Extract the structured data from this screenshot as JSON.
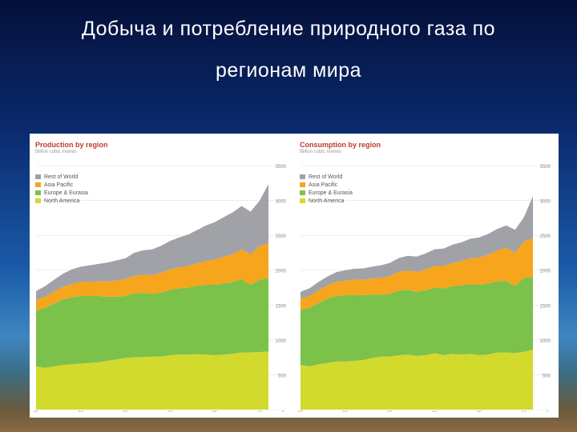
{
  "slide": {
    "title_line1": "Добыча и потребление природного газа по",
    "title_line2": "регионам мира"
  },
  "colors": {
    "rest_of_world": "#a0a2a7",
    "asia_pacific": "#f6a51c",
    "europe_eurasia": "#7cc14a",
    "north_america": "#d2da2e",
    "title_red": "#c0392b"
  },
  "chart_data": [
    {
      "type": "area",
      "title": "Production by region",
      "subtitle": "Billion cubic metres",
      "x": [
        1985,
        1986,
        1987,
        1988,
        1989,
        1990,
        1991,
        1992,
        1993,
        1994,
        1995,
        1996,
        1997,
        1998,
        1999,
        2000,
        2001,
        2002,
        2003,
        2004,
        2005,
        2006,
        2007,
        2008,
        2009,
        2010,
        2011
      ],
      "x_tick_values": [
        1985,
        1990,
        1995,
        2000,
        2005,
        2010
      ],
      "x_tick_labels": [
        "85",
        "90",
        "95",
        "00",
        "05",
        "10"
      ],
      "y_ticks": [
        0,
        500,
        1000,
        1500,
        2000,
        2500,
        3000,
        3500
      ],
      "ylim": [
        0,
        3500
      ],
      "legend": [
        "Rest of World",
        "Asia Pacific",
        "Europe & Eurasia",
        "North America"
      ],
      "series": [
        {
          "name": "North America",
          "values": [
            620,
            600,
            620,
            640,
            650,
            660,
            670,
            680,
            700,
            720,
            740,
            750,
            755,
            760,
            760,
            780,
            790,
            790,
            795,
            790,
            780,
            790,
            800,
            820,
            820,
            825,
            835
          ]
        },
        {
          "name": "Europe & Eurasia",
          "values": [
            800,
            860,
            900,
            940,
            960,
            970,
            960,
            950,
            920,
            900,
            890,
            920,
            920,
            900,
            920,
            940,
            950,
            960,
            980,
            1000,
            1010,
            1020,
            1030,
            1050,
            970,
            1040,
            1050
          ]
        },
        {
          "name": "Asia Pacific",
          "values": [
            150,
            160,
            170,
            180,
            190,
            200,
            205,
            210,
            220,
            230,
            240,
            250,
            260,
            270,
            280,
            290,
            300,
            310,
            320,
            340,
            360,
            380,
            400,
            430,
            440,
            480,
            500
          ]
        },
        {
          "name": "Rest of World",
          "values": [
            130,
            150,
            170,
            190,
            210,
            220,
            235,
            250,
            270,
            290,
            300,
            330,
            350,
            370,
            390,
            410,
            430,
            450,
            480,
            510,
            540,
            570,
            600,
            620,
            610,
            650,
            850
          ]
        }
      ]
    },
    {
      "type": "area",
      "title": "Consumption by region",
      "subtitle": "Billion cubic metres",
      "x": [
        1985,
        1986,
        1987,
        1988,
        1989,
        1990,
        1991,
        1992,
        1993,
        1994,
        1995,
        1996,
        1997,
        1998,
        1999,
        2000,
        2001,
        2002,
        2003,
        2004,
        2005,
        2006,
        2007,
        2008,
        2009,
        2010,
        2011
      ],
      "x_tick_values": [
        1985,
        1990,
        1995,
        2000,
        2005,
        2010
      ],
      "x_tick_labels": [
        "85",
        "90",
        "95",
        "00",
        "05",
        "10"
      ],
      "y_ticks": [
        0,
        500,
        1000,
        1500,
        2000,
        2500,
        3000,
        3500
      ],
      "ylim": [
        0,
        3500
      ],
      "legend": [
        "Rest of World",
        "Asia Pacific",
        "Europe & Eurasia",
        "North America"
      ],
      "series": [
        {
          "name": "North America",
          "values": [
            640,
            620,
            650,
            670,
            690,
            690,
            700,
            710,
            740,
            760,
            760,
            780,
            790,
            770,
            780,
            810,
            780,
            800,
            790,
            800,
            780,
            790,
            820,
            820,
            810,
            830,
            860
          ]
        },
        {
          "name": "Europe & Eurasia",
          "values": [
            790,
            840,
            880,
            920,
            940,
            950,
            950,
            930,
            910,
            890,
            900,
            930,
            930,
            920,
            930,
            940,
            960,
            970,
            990,
            1000,
            1010,
            1020,
            1020,
            1030,
            960,
            1060,
            1040
          ]
        },
        {
          "name": "Asia Pacific",
          "values": [
            160,
            170,
            180,
            190,
            200,
            210,
            215,
            225,
            230,
            240,
            255,
            265,
            275,
            285,
            300,
            310,
            320,
            335,
            350,
            370,
            390,
            410,
            440,
            470,
            480,
            520,
            560
          ]
        },
        {
          "name": "Rest of World",
          "values": [
            100,
            110,
            120,
            130,
            140,
            150,
            155,
            160,
            170,
            180,
            190,
            200,
            210,
            220,
            230,
            240,
            250,
            260,
            270,
            280,
            290,
            300,
            310,
            320,
            330,
            350,
            600
          ]
        }
      ]
    }
  ]
}
